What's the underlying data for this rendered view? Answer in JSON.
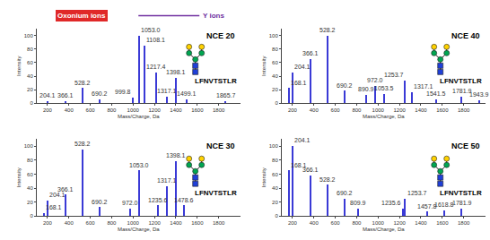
{
  "chart_data": [
    {
      "type": "bar",
      "title": "NCE 20",
      "peptide": "LFNVTSTLR",
      "annotations": [
        "Oxonium ions",
        "Y ions"
      ],
      "x_label": "Mass/Charge, Da",
      "y_label": "Intensity",
      "x": [
        204.1,
        366.1,
        528.2,
        690.2,
        999.8,
        1053.0,
        1108.1,
        1217.4,
        1317.1,
        1398.1,
        1499.1,
        1865.7
      ],
      "values": [
        3,
        3,
        22,
        6,
        8,
        100,
        85,
        45,
        10,
        37,
        5,
        3
      ],
      "peak_labels": [
        "204.1",
        "366.1",
        "528.2",
        "690.2",
        "999.8",
        "1053.0",
        "1108.1",
        "1217.4",
        "1317.1",
        "1398.1",
        "1499.1",
        "1865.7"
      ],
      "color": "#3a3ad6",
      "xlim": [
        100,
        2000
      ],
      "xticks": [
        200,
        400,
        600,
        800,
        1000,
        1200,
        1400,
        1600,
        1800
      ],
      "ylim": [
        0,
        110
      ],
      "yticks": [
        0,
        20,
        40,
        60,
        80,
        100
      ],
      "grid": false
    },
    {
      "type": "bar",
      "title": "NCE 40",
      "peptide": "LFNVTSTLR",
      "x_label": "Mass/Charge, Da",
      "y_label": "Intensity",
      "x": [
        168.1,
        204.1,
        366.1,
        528.2,
        690.2,
        890.9,
        972.0,
        1053.5,
        1253.7,
        1317.1,
        1541.5,
        1781.9,
        1943.9
      ],
      "values": [
        22,
        45,
        65,
        100,
        18,
        12,
        25,
        14,
        33,
        16,
        6,
        10,
        4
      ],
      "peak_labels": [
        "168.1",
        "204.1",
        "366.1",
        "528.2",
        "690.2",
        "890.9",
        "972.0",
        "1053.5",
        "1253.7",
        "1317.1",
        "1541.5",
        "1781.9",
        "1943.9"
      ],
      "color": "#3a3ad6",
      "xlim": [
        100,
        2000
      ],
      "xticks": [
        200,
        400,
        600,
        800,
        1000,
        1200,
        1400,
        1600,
        1800
      ],
      "ylim": [
        0,
        110
      ],
      "yticks": [
        0,
        20,
        40,
        60,
        80,
        100
      ],
      "grid": false
    },
    {
      "type": "bar",
      "title": "NCE 30",
      "peptide": "LFNVTSTLR",
      "x_label": "Mass/Charge, Da",
      "y_label": "Intensity",
      "x": [
        168.1,
        204.1,
        366.1,
        528.2,
        690.2,
        972.0,
        1053.0,
        1235.6,
        1317.1,
        1398.1,
        1478.6
      ],
      "values": [
        4,
        22,
        30,
        95,
        12,
        10,
        65,
        15,
        42,
        78,
        15
      ],
      "peak_labels": [
        "168.1",
        "204.1",
        "366.1",
        "528.2",
        "690.2",
        "972.0",
        "1053.0",
        "1235.6",
        "1317.1",
        "1398.1",
        "1478.6"
      ],
      "color": "#3a3ad6",
      "xlim": [
        100,
        2000
      ],
      "xticks": [
        200,
        400,
        600,
        800,
        1000,
        1200,
        1400,
        1600,
        1800
      ],
      "ylim": [
        0,
        110
      ],
      "yticks": [
        0,
        20,
        40,
        60,
        80,
        100
      ],
      "grid": false
    },
    {
      "type": "bar",
      "title": "NCE 50",
      "peptide": "LFNVTSTLR",
      "x_label": "Mass/Charge, Da",
      "y_label": "Intensity",
      "x": [
        168.1,
        204.1,
        366.1,
        528.2,
        690.2,
        809.9,
        1235.6,
        1253.7,
        1457.8,
        1618.8,
        1781.9
      ],
      "values": [
        65,
        100,
        58,
        44,
        24,
        10,
        10,
        24,
        6,
        8,
        10
      ],
      "peak_labels": [
        "168.1",
        "204.1",
        "366.1",
        "528.2",
        "690.2",
        "809.9",
        "1235.6",
        "1253.7",
        "1457.8",
        "1618.8",
        "1781.9"
      ],
      "color": "#3a3ad6",
      "xlim": [
        100,
        2000
      ],
      "xticks": [
        200,
        400,
        600,
        800,
        1000,
        1200,
        1400,
        1600,
        1800
      ],
      "ylim": [
        0,
        110
      ],
      "yticks": [
        0,
        20,
        40,
        60,
        80,
        100
      ],
      "grid": false
    }
  ]
}
